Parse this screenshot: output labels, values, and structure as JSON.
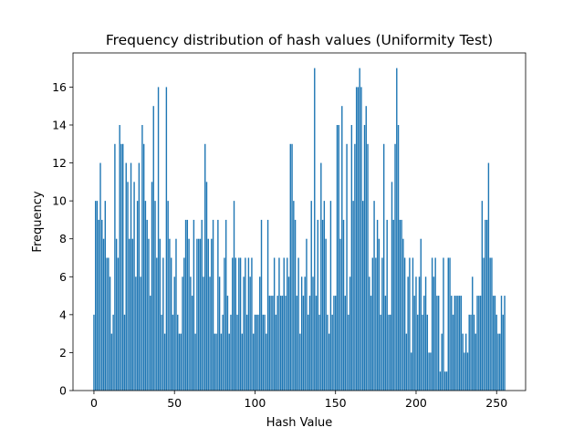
{
  "chart_data": {
    "type": "bar",
    "title": "Frequency distribution of hash values (Uniformity Test)",
    "xlabel": "Hash Value",
    "ylabel": "Frequency",
    "xlim": [
      -13,
      268
    ],
    "ylim": [
      0,
      17.8
    ],
    "xticks": [
      0,
      50,
      100,
      150,
      200,
      250
    ],
    "yticks": [
      0,
      2,
      4,
      6,
      8,
      10,
      12,
      14,
      16
    ],
    "grid": false,
    "bar_color": "#1f77b4",
    "x": [
      0,
      1,
      2,
      3,
      4,
      5,
      6,
      7,
      8,
      9,
      10,
      11,
      12,
      13,
      14,
      15,
      16,
      17,
      18,
      19,
      20,
      21,
      22,
      23,
      24,
      25,
      26,
      27,
      28,
      29,
      30,
      31,
      32,
      33,
      34,
      35,
      36,
      37,
      38,
      39,
      40,
      41,
      42,
      43,
      44,
      45,
      46,
      47,
      48,
      49,
      50,
      51,
      52,
      53,
      54,
      55,
      56,
      57,
      58,
      59,
      60,
      61,
      62,
      63,
      64,
      65,
      66,
      67,
      68,
      69,
      70,
      71,
      72,
      73,
      74,
      75,
      76,
      77,
      78,
      79,
      80,
      81,
      82,
      83,
      84,
      85,
      86,
      87,
      88,
      89,
      90,
      91,
      92,
      93,
      94,
      95,
      96,
      97,
      98,
      99,
      100,
      101,
      102,
      103,
      104,
      105,
      106,
      107,
      108,
      109,
      110,
      111,
      112,
      113,
      114,
      115,
      116,
      117,
      118,
      119,
      120,
      121,
      122,
      123,
      124,
      125,
      126,
      127,
      128,
      129,
      130,
      131,
      132,
      133,
      134,
      135,
      136,
      137,
      138,
      139,
      140,
      141,
      142,
      143,
      144,
      145,
      146,
      147,
      148,
      149,
      150,
      151,
      152,
      153,
      154,
      155,
      156,
      157,
      158,
      159,
      160,
      161,
      162,
      163,
      164,
      165,
      166,
      167,
      168,
      169,
      170,
      171,
      172,
      173,
      174,
      175,
      176,
      177,
      178,
      179,
      180,
      181,
      182,
      183,
      184,
      185,
      186,
      187,
      188,
      189,
      190,
      191,
      192,
      193,
      194,
      195,
      196,
      197,
      198,
      199,
      200,
      201,
      202,
      203,
      204,
      205,
      206,
      207,
      208,
      209,
      210,
      211,
      212,
      213,
      214,
      215,
      216,
      217,
      218,
      219,
      220,
      221,
      222,
      223,
      224,
      225,
      226,
      227,
      228,
      229,
      230,
      231,
      232,
      233,
      234,
      235,
      236,
      237,
      238,
      239,
      240,
      241,
      242,
      243,
      244,
      245,
      246,
      247,
      248,
      249,
      250,
      251,
      252,
      253,
      254,
      255
    ],
    "values": [
      4,
      10,
      10,
      9,
      12,
      9,
      8,
      10,
      7,
      7,
      6,
      3,
      4,
      13,
      8,
      7,
      14,
      13,
      13,
      4,
      12,
      11,
      8,
      12,
      8,
      11,
      6,
      10,
      12,
      6,
      14,
      13,
      10,
      9,
      8,
      5,
      11,
      15,
      10,
      7,
      16,
      8,
      4,
      7,
      3,
      16,
      10,
      8,
      7,
      4,
      6,
      8,
      4,
      3,
      3,
      6,
      7,
      9,
      9,
      8,
      6,
      5,
      9,
      3,
      8,
      8,
      8,
      9,
      6,
      13,
      11,
      8,
      6,
      8,
      9,
      3,
      3,
      9,
      6,
      3,
      4,
      7,
      9,
      5,
      3,
      4,
      7,
      10,
      7,
      4,
      7,
      7,
      3,
      6,
      7,
      4,
      7,
      6,
      7,
      3,
      4,
      4,
      4,
      6,
      9,
      4,
      4,
      3,
      9,
      5,
      5,
      5,
      7,
      4,
      5,
      7,
      5,
      5,
      7,
      5,
      7,
      6,
      13,
      13,
      10,
      9,
      5,
      7,
      3,
      6,
      5,
      6,
      8,
      4,
      5,
      10,
      6,
      17,
      5,
      9,
      4,
      12,
      9,
      10,
      8,
      4,
      3,
      10,
      4,
      5,
      5,
      14,
      14,
      8,
      15,
      9,
      5,
      13,
      4,
      6,
      14,
      10,
      13,
      16,
      16,
      17,
      16,
      10,
      14,
      15,
      13,
      6,
      5,
      7,
      10,
      7,
      9,
      8,
      4,
      7,
      13,
      5,
      9,
      4,
      4,
      11,
      9,
      13,
      17,
      14,
      9,
      9,
      8,
      7,
      3,
      6,
      7,
      2,
      7,
      5,
      6,
      4,
      6,
      8,
      4,
      5,
      6,
      4,
      2,
      2,
      7,
      6,
      7,
      5,
      5,
      1,
      3,
      7,
      1,
      1,
      7,
      7,
      5,
      4,
      5,
      5,
      5,
      5,
      5,
      3,
      2,
      3,
      2,
      4,
      4,
      6,
      4,
      3,
      5,
      5,
      5,
      10,
      7,
      9,
      9,
      12,
      7,
      7,
      5,
      5,
      4,
      3,
      3,
      5,
      4,
      5
    ]
  }
}
